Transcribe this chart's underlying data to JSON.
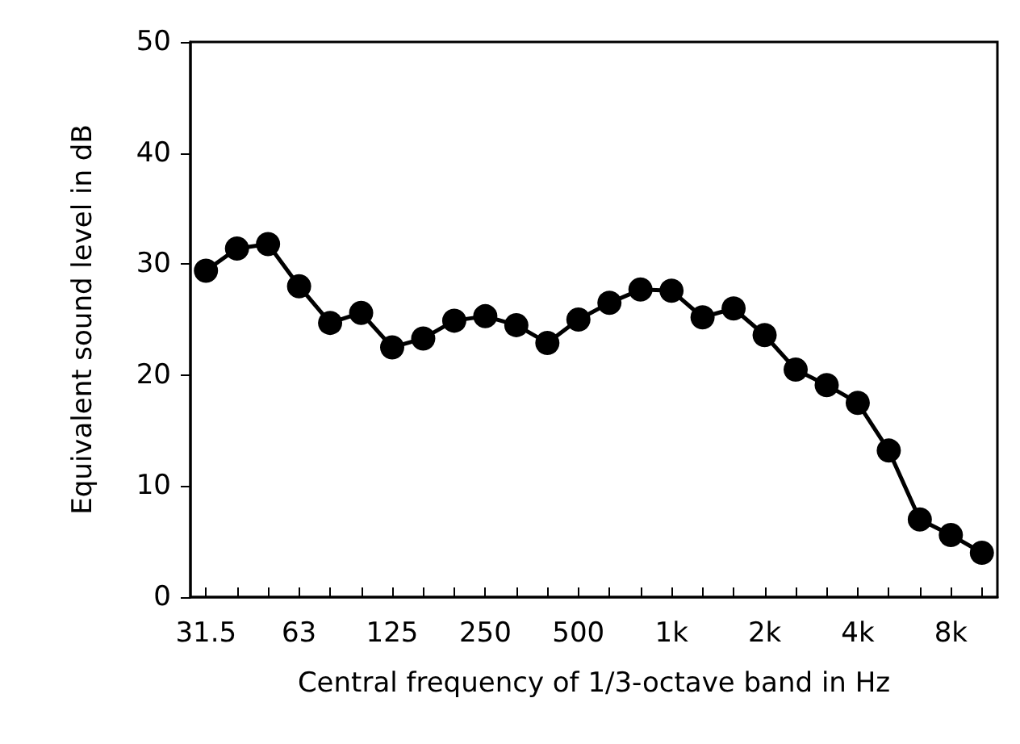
{
  "chart_data": {
    "type": "line",
    "xlabel": "Central frequency of 1/3-octave band in Hz",
    "ylabel": "Equivalent sound level in dB",
    "categories": [
      "31.5",
      null,
      null,
      "63",
      null,
      null,
      "125",
      null,
      null,
      "250",
      null,
      null,
      "500",
      null,
      null,
      "1k",
      null,
      null,
      "2k",
      null,
      null,
      "4k",
      null,
      null,
      "8k",
      null
    ],
    "series": [
      {
        "color": "#000000",
        "values": [
          29.4,
          31.4,
          31.8,
          28.0,
          24.7,
          25.6,
          22.5,
          23.3,
          24.9,
          25.3,
          24.5,
          22.9,
          25.0,
          26.5,
          27.7,
          27.6,
          25.2,
          26.0,
          23.6,
          20.5,
          19.1,
          17.5,
          13.2,
          7.0,
          5.6,
          4.0
        ]
      }
    ],
    "ylim": [
      0,
      50
    ],
    "yticks": [
      0,
      10,
      20,
      30,
      40,
      50
    ],
    "grid": false,
    "marker": "circle",
    "line_style": "solid"
  }
}
